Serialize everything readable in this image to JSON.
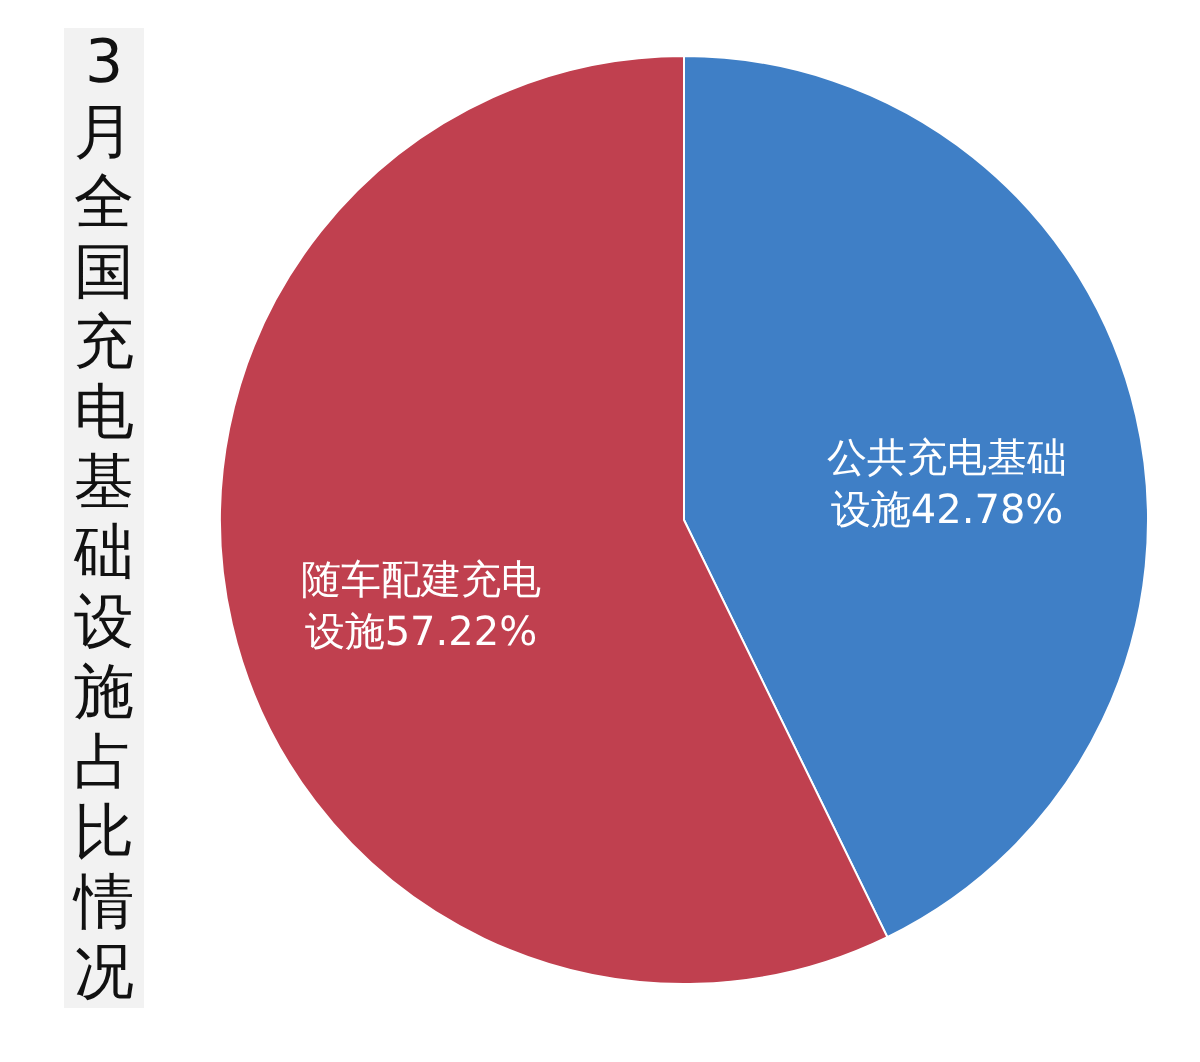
{
  "chart_data": {
    "type": "pie",
    "title": "3月全国充电基础设施占比情况",
    "categories": [
      "公共充电基础设施",
      "随车配建充电设施"
    ],
    "values": [
      42.78,
      57.22
    ],
    "colors": [
      "#3f7fc6",
      "#c0404f"
    ],
    "value_labels": [
      "42.78%",
      "57.22%"
    ],
    "legend": false
  }
}
